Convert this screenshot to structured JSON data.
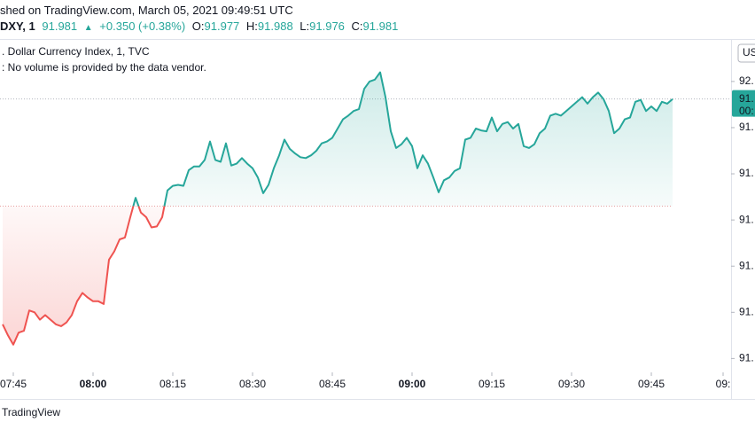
{
  "header": {
    "published": "shed on TradingView.com, March 05, 2021 09:49:51 UTC",
    "symbol": "DXY, 1",
    "last": "91.981",
    "arrow": "▲",
    "change": "+0.350 (+0.38%)",
    "o_label": "O:",
    "o": "91.977",
    "h_label": "H:",
    "h": "91.988",
    "l_label": "L:",
    "l": "91.976",
    "c_label": "C:",
    "c": "91.981"
  },
  "chart_data": {
    "type": "baseline",
    "title": ". Dollar Currency Index, 1, TVC",
    "note": ": No volume is provided by the data vendor.",
    "up_color": "#26a69a",
    "down_color": "#ef5350",
    "baseline": 91.865,
    "x": [
      463,
      464,
      465,
      466,
      467,
      468,
      469,
      470,
      471,
      472,
      473,
      474,
      475,
      476,
      477,
      478,
      479,
      480,
      481,
      482,
      483,
      484,
      485,
      486,
      487,
      488,
      489,
      490,
      491,
      492,
      493,
      494,
      495,
      496,
      497,
      498,
      499,
      500,
      501,
      502,
      503,
      504,
      505,
      506,
      507,
      508,
      509,
      510,
      511,
      512,
      513,
      514,
      515,
      516,
      517,
      518,
      519,
      520,
      521,
      522,
      523,
      524,
      525,
      526,
      527,
      528,
      529,
      530,
      531,
      532,
      533,
      534,
      535,
      536,
      537,
      538,
      539,
      540,
      541,
      542,
      543,
      544,
      545,
      546,
      547,
      548,
      549,
      550,
      551,
      552,
      553,
      554,
      555,
      556,
      557,
      558,
      559,
      560,
      561,
      562,
      563,
      564,
      565,
      566,
      567,
      568,
      569,
      570,
      571,
      572,
      573,
      574,
      575,
      576,
      577,
      578,
      579,
      580,
      581,
      582,
      583,
      584,
      585,
      586,
      587,
      588,
      589
    ],
    "values": [
      91.737,
      91.725,
      91.715,
      91.728,
      91.73,
      91.752,
      91.75,
      91.742,
      91.747,
      91.742,
      91.737,
      91.735,
      91.739,
      91.747,
      91.762,
      91.771,
      91.766,
      91.762,
      91.762,
      91.759,
      91.807,
      91.816,
      91.829,
      91.831,
      91.853,
      91.874,
      91.858,
      91.853,
      91.842,
      91.843,
      91.853,
      91.882,
      91.887,
      91.888,
      91.887,
      91.904,
      91.908,
      91.908,
      91.915,
      91.935,
      91.915,
      91.913,
      91.933,
      91.909,
      91.911,
      91.917,
      91.911,
      91.906,
      91.896,
      91.879,
      91.888,
      91.906,
      91.92,
      91.937,
      91.927,
      91.922,
      91.918,
      91.917,
      91.92,
      91.925,
      91.933,
      91.935,
      91.939,
      91.949,
      91.959,
      91.963,
      91.968,
      91.97,
      91.992,
      92.0,
      92.002,
      92.01,
      91.983,
      91.946,
      91.928,
      91.932,
      91.939,
      91.93,
      91.906,
      91.92,
      91.911,
      91.896,
      91.88,
      91.893,
      91.896,
      91.903,
      91.906,
      91.937,
      91.939,
      91.949,
      91.947,
      91.946,
      91.961,
      91.946,
      91.954,
      91.956,
      91.949,
      91.954,
      91.93,
      91.928,
      91.932,
      91.944,
      91.949,
      91.963,
      91.965,
      91.963,
      91.968,
      91.973,
      91.978,
      91.983,
      91.976,
      91.983,
      91.988,
      91.981,
      91.968,
      91.944,
      91.949,
      91.959,
      91.961,
      91.978,
      91.98,
      91.968,
      91.973,
      91.968,
      91.978,
      91.976,
      91.981
    ],
    "xlim": [
      462.5,
      600
    ],
    "xticks": [
      {
        "value": 465,
        "label": "07:45"
      },
      {
        "value": 480,
        "label": "08:00"
      },
      {
        "value": 495,
        "label": "08:15"
      },
      {
        "value": 510,
        "label": "08:30"
      },
      {
        "value": 525,
        "label": "08:45"
      },
      {
        "value": 540,
        "label": "09:00"
      },
      {
        "value": 555,
        "label": "09:15"
      },
      {
        "value": 570,
        "label": "09:30"
      },
      {
        "value": 585,
        "label": "09:45"
      },
      {
        "value": 598.5,
        "label": "09:"
      }
    ],
    "ylim": [
      91.685,
      92.045
    ],
    "yticks": [
      {
        "value": 92.0,
        "label": "92."
      },
      {
        "value": 91.95,
        "label": "91."
      },
      {
        "value": 91.9,
        "label": "91."
      },
      {
        "value": 91.85,
        "label": "91."
      },
      {
        "value": 91.8,
        "label": "91."
      },
      {
        "value": 91.75,
        "label": "91."
      },
      {
        "value": 91.7,
        "label": "91."
      }
    ],
    "price_label": [
      "91.",
      "00:"
    ],
    "currency": "US"
  },
  "footer": "TradingView"
}
